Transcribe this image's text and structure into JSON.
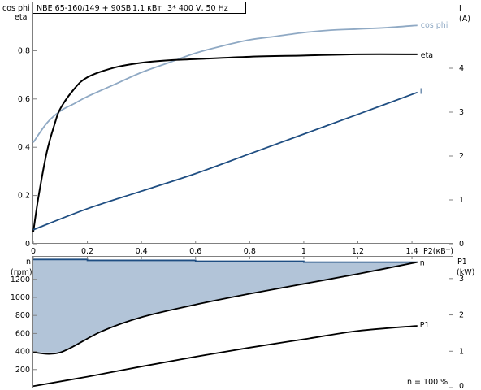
{
  "header": {
    "pump": "NBE 65-160/149 + 90SB",
    "power": "1.1 кВт",
    "supply": "3* 400 V, 50 Hz"
  },
  "colors": {
    "cos_phi": "#8fa9c4",
    "eta": "#000000",
    "current": "#1f4e82",
    "speed_fill": "#b2c4d8",
    "speed_line": "#1f4e82",
    "p1": "#000000",
    "axis": "#808080"
  },
  "chart_data": [
    {
      "type": "line",
      "title": "",
      "xlabel": "P2(кВт)",
      "xlim": [
        0,
        1.55
      ],
      "xticks": [
        0,
        0.2,
        0.4,
        0.6,
        0.8,
        1,
        1.2,
        1.4
      ],
      "xtick_labels": [
        "0",
        "0.2",
        "0.4",
        "0.6",
        "0.8",
        "1",
        "1.2",
        "1.4"
      ],
      "left_axis": {
        "label_top": "cos phi",
        "label_bottom": "eta",
        "lim": [
          0,
          1.0
        ],
        "ticks": [
          0,
          0.2,
          0.4,
          0.6,
          0.8
        ],
        "tick_labels": [
          "0",
          "0.2",
          "0.4",
          "0.6",
          "0.8"
        ]
      },
      "right_axis": {
        "label_top": "I",
        "label_bottom": "(A)",
        "lim": [
          0,
          5.5
        ],
        "ticks": [
          0,
          1,
          2,
          3,
          4
        ],
        "tick_labels": [
          "0",
          "1",
          "2",
          "3",
          "4"
        ]
      },
      "series": [
        {
          "name": "cos phi",
          "axis": "left",
          "x": [
            0,
            0.05,
            0.1,
            0.15,
            0.2,
            0.3,
            0.4,
            0.5,
            0.6,
            0.7,
            0.8,
            0.9,
            1.0,
            1.1,
            1.2,
            1.3,
            1.42
          ],
          "y": [
            0.42,
            0.5,
            0.55,
            0.58,
            0.61,
            0.66,
            0.71,
            0.75,
            0.79,
            0.82,
            0.845,
            0.86,
            0.875,
            0.885,
            0.89,
            0.895,
            0.905
          ]
        },
        {
          "name": "eta",
          "axis": "left",
          "x": [
            0,
            0.02,
            0.05,
            0.08,
            0.1,
            0.15,
            0.2,
            0.3,
            0.4,
            0.5,
            0.6,
            0.8,
            1.0,
            1.2,
            1.42
          ],
          "y": [
            0.05,
            0.2,
            0.38,
            0.5,
            0.56,
            0.64,
            0.69,
            0.73,
            0.75,
            0.76,
            0.765,
            0.775,
            0.78,
            0.785,
            0.785
          ]
        },
        {
          "name": "I",
          "axis": "right",
          "x": [
            0,
            0.2,
            0.4,
            0.6,
            0.8,
            1.0,
            1.2,
            1.42
          ],
          "y": [
            0.32,
            0.8,
            1.2,
            1.6,
            2.05,
            2.5,
            2.95,
            3.45
          ]
        }
      ]
    },
    {
      "type": "area",
      "xlabel": "",
      "xlim": [
        0,
        1.55
      ],
      "left_axis": {
        "label_top": "n",
        "label_bottom": "(rpm)",
        "lim": [
          0,
          1450
        ],
        "ticks": [
          200,
          400,
          600,
          800,
          1000,
          1200
        ],
        "tick_labels": [
          "200",
          "400",
          "600",
          "800",
          "1000",
          "1200"
        ]
      },
      "right_axis": {
        "label_top": "P1",
        "label_bottom": "(kW)",
        "lim": [
          0,
          3.6
        ],
        "ticks": [
          0,
          1,
          2,
          3
        ],
        "tick_labels": [
          "0",
          "1",
          "2",
          "3"
        ]
      },
      "annotation": "n = 100 %",
      "band_upper": {
        "x": [
          0,
          0.2,
          0.2,
          0.6,
          0.6,
          1.0,
          1.0,
          1.42
        ],
        "y": [
          1420,
          1420,
          1410,
          1410,
          1400,
          1400,
          1390,
          1390
        ]
      },
      "series": [
        {
          "name": "n",
          "axis": "left",
          "x": [
            0,
            0.1,
            0.25,
            0.4,
            0.6,
            0.8,
            1.0,
            1.2,
            1.42
          ],
          "y": [
            390,
            390,
            620,
            780,
            920,
            1040,
            1150,
            1260,
            1390
          ]
        },
        {
          "name": "P1",
          "axis": "right",
          "x": [
            0,
            0.2,
            0.4,
            0.6,
            0.8,
            1.0,
            1.2,
            1.42
          ],
          "y": [
            0.04,
            0.3,
            0.58,
            0.85,
            1.1,
            1.33,
            1.56,
            1.7
          ]
        }
      ]
    }
  ]
}
